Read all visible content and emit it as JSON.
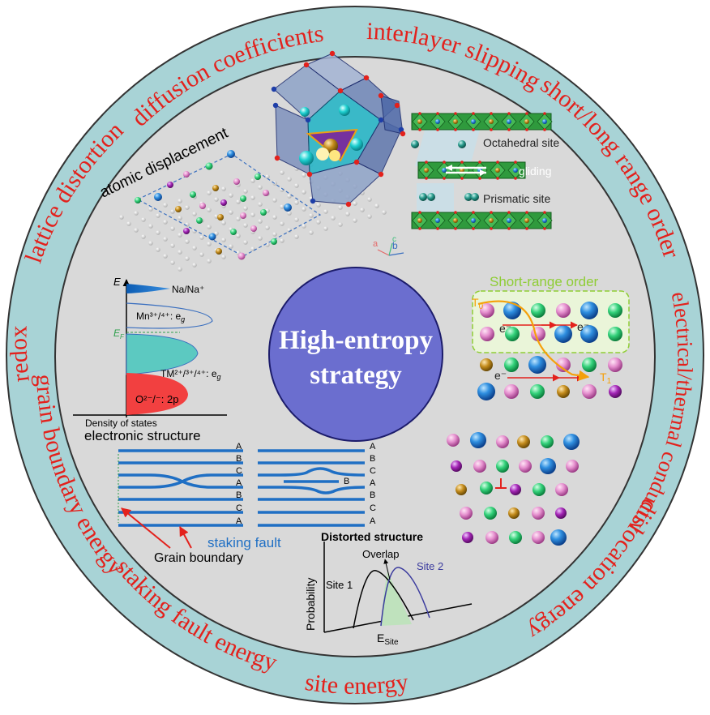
{
  "ring_labels": [
    "diffusion coefficients",
    "interlayer slipping",
    "short/long range order",
    "electrical/thermal conductivity",
    "dislocation energy",
    "site energy",
    "staking fault energy",
    "grain boundary energy",
    "redox",
    "lattice distortion"
  ],
  "center": {
    "line1": "High-entropy",
    "line2": "strategy"
  },
  "atomic": {
    "label": "atomic displacement"
  },
  "layered": {
    "octahedral": "Octahedral site",
    "gliding": "gliding",
    "prismatic": "Prismatic site",
    "axis_a": "a",
    "axis_b": "b",
    "axis_c": "c"
  },
  "electronic": {
    "e_axis": "E",
    "na": "Na/Na⁺",
    "mn": "Mn³⁺/⁴⁺: e",
    "mn_sub": "g",
    "ef": "E",
    "ef_sub": "F",
    "tm": "TM²⁺/³⁺/⁴⁺: e",
    "tm_sub": "g",
    "o": "O²⁻/⁻: 2p",
    "dos": "Density of states",
    "title": "electronic structure"
  },
  "sro": {
    "title": "Short-range order",
    "e1": "e⁻",
    "e2": "e⁻",
    "e3": "e⁻",
    "t0": "T",
    "t0_sub": "0",
    "t1": "T",
    "t1_sub": "1"
  },
  "stacking": {
    "left_letters": [
      "A",
      "B",
      "C",
      "A",
      "B",
      "C",
      "A"
    ],
    "right_letters": [
      "A",
      "B",
      "C",
      "A",
      "B",
      "C",
      "A"
    ],
    "extra_b": "B",
    "staking_fault": "staking fault",
    "grain_boundary": "Grain boundary"
  },
  "distorted": {
    "title": "Distorted structure",
    "overlap": "Overlap",
    "site1": "Site 1",
    "site2": "Site 2",
    "yaxis": "Probability",
    "xaxis": "E",
    "xaxis_sub": "Site"
  },
  "colors": {
    "ring": "#a8d3d6",
    "inner": "#d9d9d9",
    "center": "#6b6ecf",
    "ring_text": "#e3211c",
    "line_blue": "#1f6fc4",
    "sro_green": "#8fcd35"
  }
}
